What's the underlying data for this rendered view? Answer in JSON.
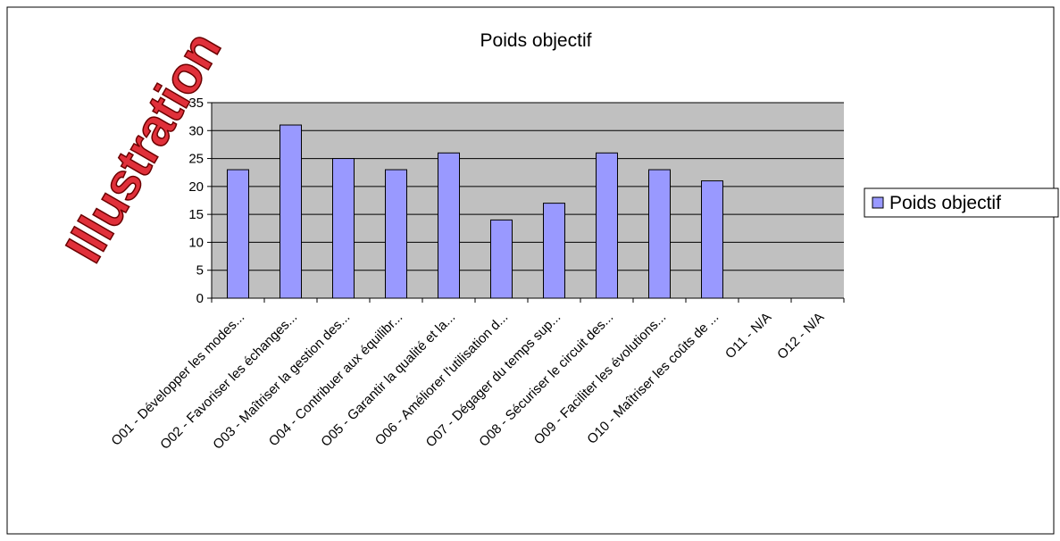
{
  "chart_data": {
    "type": "bar",
    "title": "Poids objectif",
    "watermark": "Illustration",
    "categories": [
      "O01 - Développer les modes...",
      "O02 - Favoriser les échanges...",
      "O03 - Maîtriser la gestion des...",
      "O04 - Contribuer aux équilibr...",
      "O05 - Garantir la qualité et la...",
      "O06 - Améliorer l'utilisation d...",
      "O07 - Dégager du temps sup...",
      "O08 - Sécuriser le circuit des...",
      "O09 - Faciliter les évolutions...",
      "O10 - Maîtriser les coûts de ...",
      "O11 - N/A",
      "O12 - N/A"
    ],
    "series": [
      {
        "name": "Poids objectif",
        "color": "#9999ff",
        "values": [
          23,
          31,
          25,
          23,
          26,
          14,
          17,
          26,
          23,
          21,
          null,
          null
        ]
      }
    ],
    "ylim": [
      0,
      35
    ],
    "yticks": [
      0,
      5,
      10,
      15,
      20,
      25,
      30,
      35
    ],
    "grid": true,
    "legend": "right",
    "plot_background": "#c0c0c0"
  }
}
